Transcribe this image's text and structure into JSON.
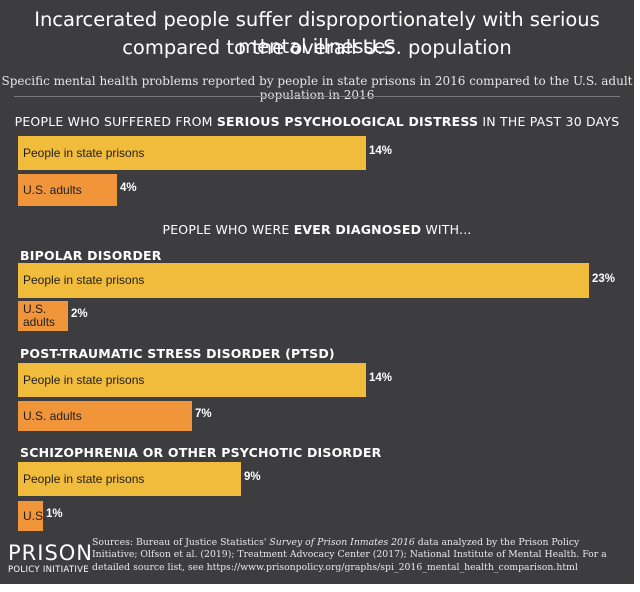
{
  "header": {
    "title_line1": "Incarcerated people suffer disproportionately with serious mental illnesses",
    "title_line2": "compared to the overall U.S. population",
    "subtitle": "Specific mental health problems reported by people in state prisons in 2016 compared to the U.S. adult population in 2016"
  },
  "section1": {
    "pre": "PEOPLE WHO SUFFERED FROM ",
    "bold": "SERIOUS PSYCHOLOGICAL DISTRESS",
    "post": " IN THE PAST 30 DAYS"
  },
  "section2": {
    "pre": "PEOPLE WHO WERE ",
    "bold": "EVER DIAGNOSED",
    "post": " WITH..."
  },
  "chart_data": {
    "type": "bar",
    "orientation": "horizontal",
    "unit": "%",
    "xlim": [
      0,
      23
    ],
    "groups": [
      {
        "name": "",
        "bars": [
          {
            "label": "People in state prisons",
            "value": 14,
            "value_label": "14%",
            "color": "#f1bb3c"
          },
          {
            "label": "U.S. adults",
            "value": 4,
            "value_label": "4%",
            "color": "#f0953a"
          }
        ]
      },
      {
        "name": "BIPOLAR DISORDER",
        "bars": [
          {
            "label": "People in state prisons",
            "value": 23,
            "value_label": "23%",
            "color": "#f1bb3c"
          },
          {
            "label": "U.S. adults",
            "value": 2,
            "value_label": "2%",
            "color": "#f0953a"
          }
        ]
      },
      {
        "name": "POST-TRAUMATIC STRESS DISORDER (PTSD)",
        "bars": [
          {
            "label": "People in state prisons",
            "value": 14,
            "value_label": "14%",
            "color": "#f1bb3c"
          },
          {
            "label": "U.S. adults",
            "value": 7,
            "value_label": "7%",
            "color": "#f0953a"
          }
        ]
      },
      {
        "name": "SCHIZOPHRENIA OR OTHER PSYCHOTIC DISORDER",
        "bars": [
          {
            "label": "People in state prisons",
            "value": 9,
            "value_label": "9%",
            "color": "#f1bb3c"
          },
          {
            "label": "U.S.",
            "value": 1,
            "value_label": "1%",
            "color": "#f0953a"
          }
        ]
      }
    ]
  },
  "footer": {
    "logo_main": "PRISON",
    "logo_sub": "POLICY INITIATIVE",
    "sources_pre": "Sources: Bureau of Justice Statistics' ",
    "sources_italic": "Survey of Prison Inmates 2016",
    "sources_post": " data analyzed by the Prison Policy Initiative; Olfson et al. (2019); Treatment Advocacy Center (2017); National Institute of Mental Health. For a detailed source list, see https://www.prisonpolicy.org/graphs/spi_2016_mental_health_comparison.html"
  }
}
